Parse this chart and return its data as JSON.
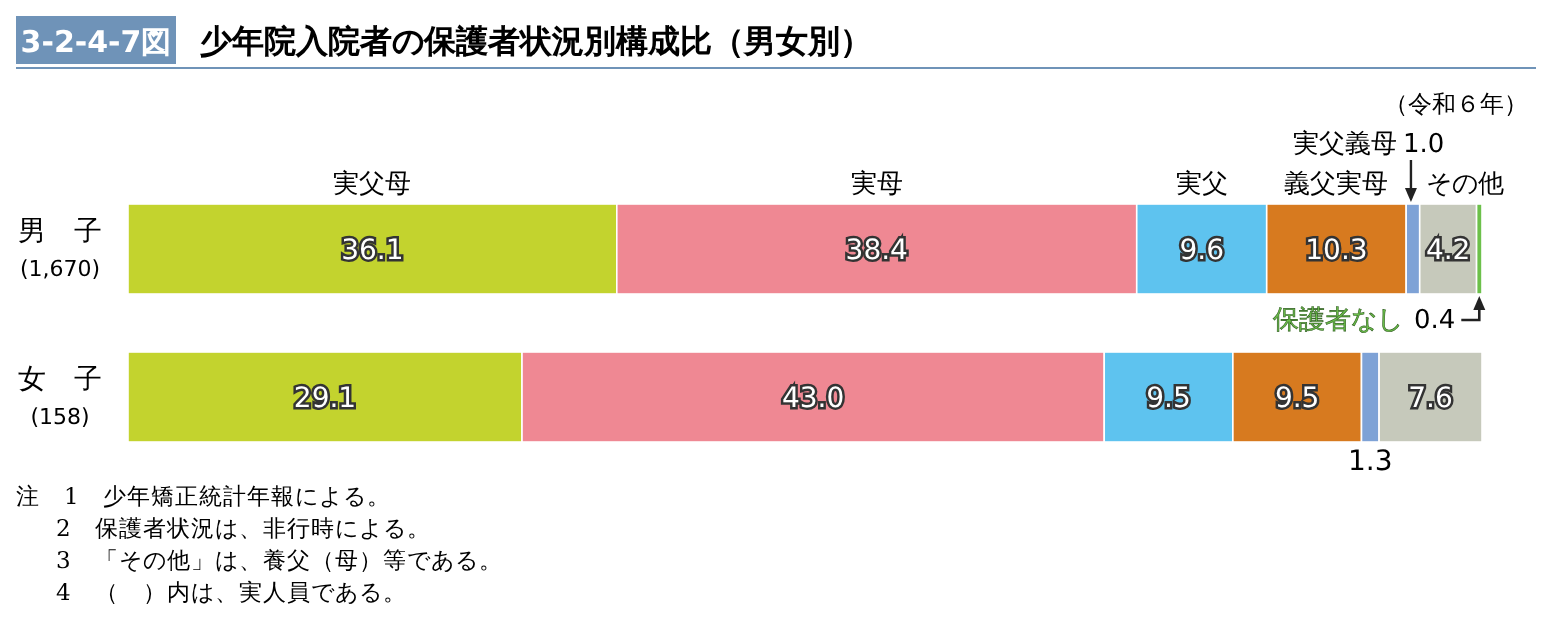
{
  "chart_data": {
    "type": "bar",
    "orientation": "horizontal",
    "stacked": true,
    "title": "3-2-4-7図 少年院入院者の保護者状況別構成比（男女別）",
    "subtitle": "（令和６年）",
    "categories": [
      "男　子\n(1,670)",
      "女　子\n(158)"
    ],
    "series": [
      {
        "name": "実父母",
        "color": "#c3d32e",
        "values": [
          36.1,
          29.1
        ],
        "value_labels": [
          "36.1",
          "29.1"
        ]
      },
      {
        "name": "実母",
        "color": "#ef8893",
        "values": [
          38.4,
          43.0
        ],
        "value_labels": [
          "38.4",
          "43.0"
        ]
      },
      {
        "name": "実父",
        "color": "#5ec3ef",
        "values": [
          9.6,
          9.5
        ],
        "value_labels": [
          "9.6",
          "9.5"
        ]
      },
      {
        "name": "義父実母",
        "color": "#d77a1f",
        "values": [
          10.3,
          9.5
        ],
        "value_labels": [
          "10.3",
          "9.5"
        ]
      },
      {
        "name": "実父義母",
        "color": "#7ea2d6",
        "values": [
          1.0,
          1.3
        ],
        "value_labels": [
          "1.0",
          "1.3"
        ]
      },
      {
        "name": "その他",
        "color": "#c6c9bb",
        "values": [
          4.2,
          7.6
        ],
        "value_labels": [
          "4.2",
          "7.6"
        ]
      },
      {
        "name": "保護者なし",
        "color": "#6cc04a",
        "values": [
          0.4,
          null
        ],
        "value_labels": [
          "0.4",
          null
        ]
      }
    ],
    "annotations": [
      "注　1　少年矯正統計年報による。",
      "2　保護者状況は、非行時による。",
      "3　「その他」は、養父（母）等である。",
      "4　（　）内は、実人員である。"
    ]
  }
}
